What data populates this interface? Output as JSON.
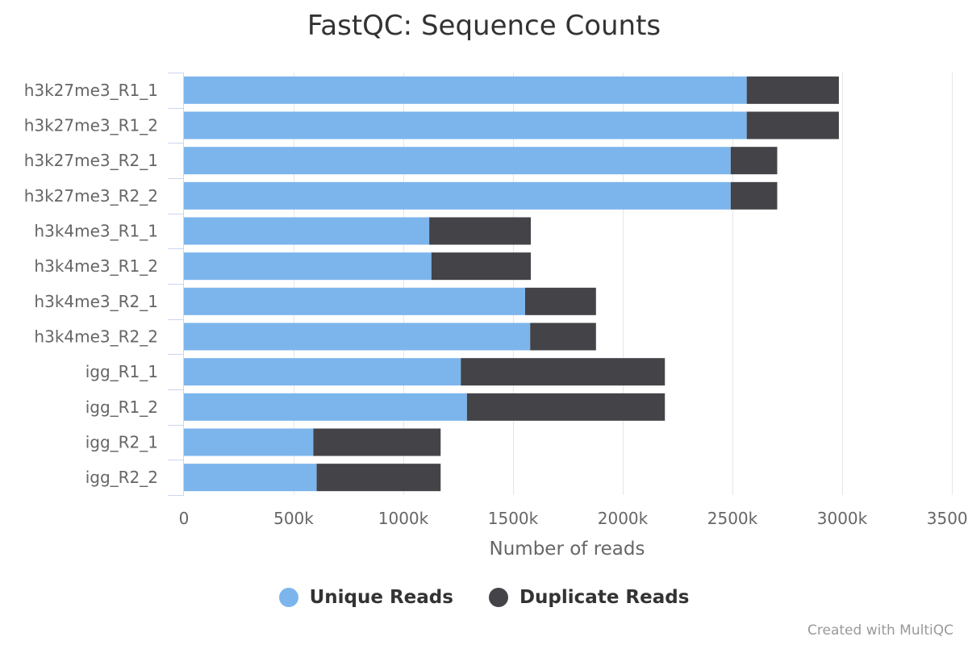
{
  "chart_data": {
    "type": "bar",
    "orientation": "horizontal",
    "stacked": true,
    "title": "FastQC: Sequence Counts",
    "xlabel": "Number of reads",
    "ylabel": "",
    "xlim": [
      0,
      3500000
    ],
    "x_ticks": [
      0,
      500000,
      1000000,
      1500000,
      2000000,
      2500000,
      3000000,
      3500000
    ],
    "x_tick_labels": [
      "0",
      "500k",
      "1000k",
      "1500k",
      "2000k",
      "2500k",
      "3000k",
      "3500k"
    ],
    "grid": true,
    "legend_position": "bottom",
    "categories": [
      "h3k27me3_R1_1",
      "h3k27me3_R1_2",
      "h3k27me3_R2_1",
      "h3k27me3_R2_2",
      "h3k4me3_R1_1",
      "h3k4me3_R1_2",
      "h3k4me3_R2_1",
      "h3k4me3_R2_2",
      "igg_R1_1",
      "igg_R1_2",
      "igg_R2_1",
      "igg_R2_2"
    ],
    "series": [
      {
        "name": "Unique Reads",
        "color": "#7cb5ec",
        "values": [
          2565000,
          2565000,
          2492000,
          2492000,
          1118000,
          1128000,
          1555000,
          1578000,
          1262000,
          1290000,
          590000,
          605000
        ]
      },
      {
        "name": "Duplicate Reads",
        "color": "#434348",
        "values": [
          420000,
          420000,
          212000,
          212000,
          463000,
          453000,
          323000,
          300000,
          930000,
          902000,
          580000,
          565000
        ]
      }
    ]
  },
  "credits": "Created with MultiQC"
}
